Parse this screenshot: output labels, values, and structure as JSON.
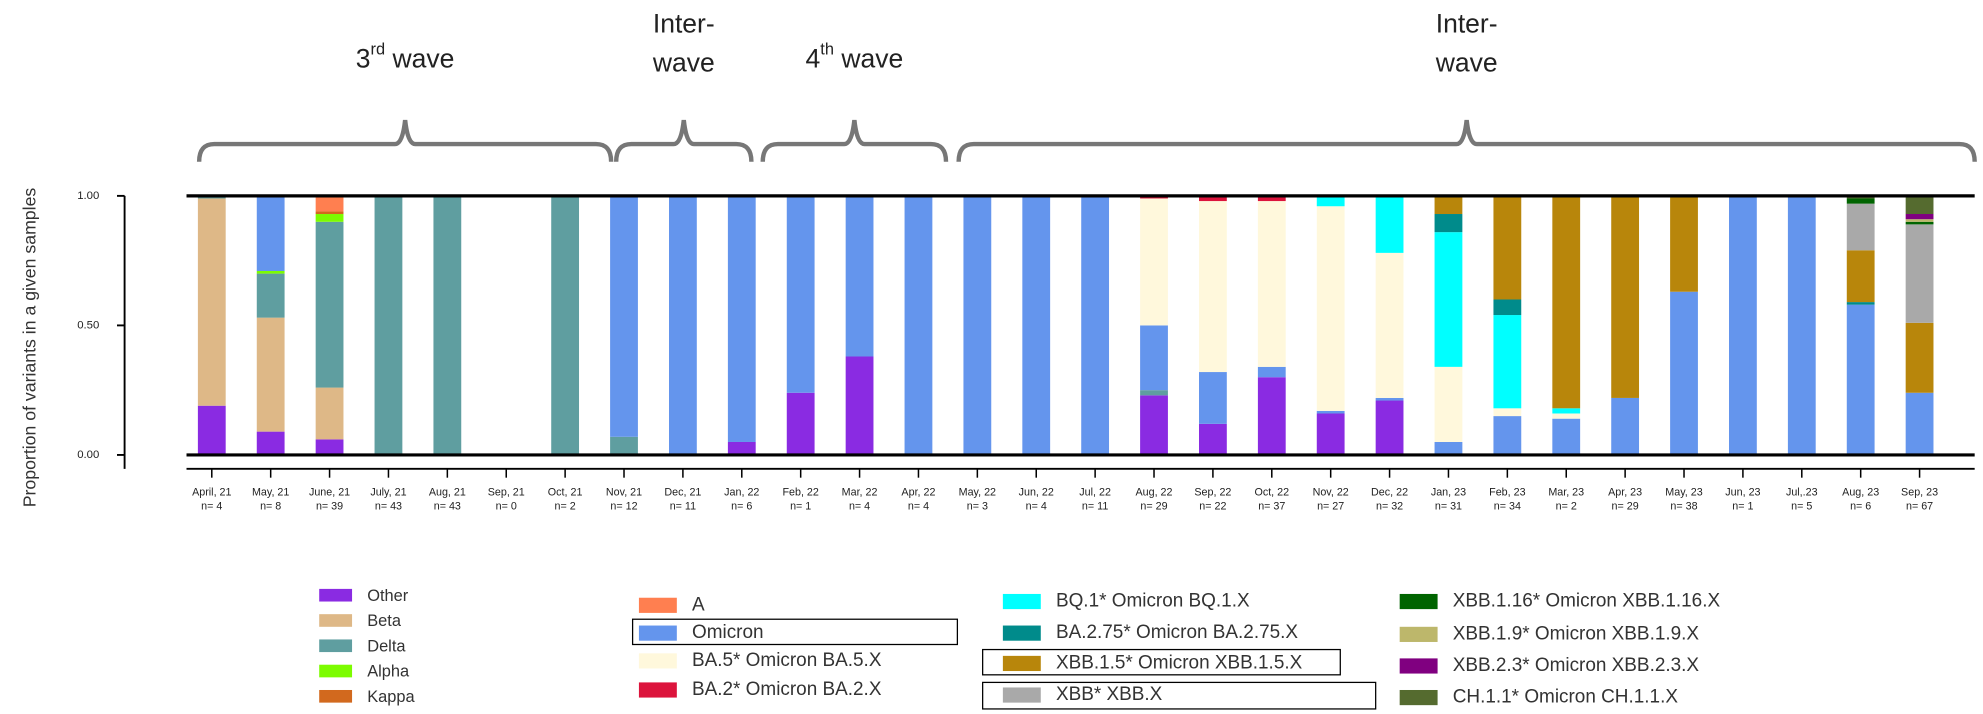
{
  "chart_data": {
    "type": "stacked_bar",
    "y_label": "Proportion of variants in a given samples",
    "ylim": [
      0,
      1
    ],
    "yticks": [
      {
        "value": 0,
        "label": "0.00"
      },
      {
        "value": 0.5,
        "label": "0.50"
      },
      {
        "value": 1,
        "label": "1.00"
      }
    ],
    "categories": [
      "April, 21",
      "May, 21",
      "June, 21",
      "July, 21",
      "Aug, 21",
      "Sep, 21",
      "Oct, 21",
      "Nov, 21",
      "Dec, 21",
      "Jan, 22",
      "Feb, 22",
      "Mar, 22",
      "Apr, 22",
      "May, 22",
      "Jun, 22",
      "Jul, 22",
      "Aug, 22",
      "Sep, 22",
      "Oct, 22",
      "Nov, 22",
      "Dec, 22",
      "Jan, 23",
      "Feb, 23",
      "Mar, 23",
      "Apr, 23",
      "May, 23",
      "Jun, 23",
      "Jul,.23",
      "Aug, 23",
      "Sep, 23"
    ],
    "sample_labels": [
      "n= 4",
      "n= 8",
      "n= 39",
      "n= 43",
      "n= 43",
      "n= 0",
      "n= 2",
      "n= 12",
      "n= 11",
      "n= 6",
      "n= 1",
      "n= 4",
      "n= 4",
      "n= 3",
      "n= 4",
      "n= 11",
      "n= 29",
      "n= 22",
      "n= 37",
      "n= 27",
      "n= 32",
      "n= 31",
      "n= 34",
      "n= 2",
      "n= 29",
      "n= 38",
      "n= 1",
      "n= 5",
      "n= 6",
      "n= 67"
    ],
    "annotations": [
      {
        "base": "3",
        "sup": "rd",
        "rest": " wave"
      },
      {
        "lines": [
          "Inter-",
          "wave"
        ]
      },
      {
        "base": "4",
        "sup": "th",
        "rest": " wave"
      },
      {
        "lines": [
          "Inter-",
          "wave"
        ]
      }
    ],
    "series": [
      {
        "name": "Other",
        "color": "#8a2be2",
        "values": [
          0.19,
          0.09,
          0.06,
          0,
          0,
          0,
          0,
          0,
          0,
          0.05,
          0.24,
          0.38,
          0,
          0,
          0,
          0,
          0.23,
          0.12,
          0.3,
          0.16,
          0.21,
          0,
          0,
          0,
          0,
          0,
          0,
          0,
          0,
          0
        ]
      },
      {
        "name": "Beta",
        "color": "#deb887",
        "values": [
          0.8,
          0.44,
          0.2,
          0,
          0,
          0,
          0,
          0,
          0,
          0,
          0,
          0,
          0,
          0,
          0,
          0,
          0,
          0,
          0,
          0,
          0,
          0,
          0,
          0,
          0,
          0,
          0,
          0,
          0,
          0
        ]
      },
      {
        "name": "Delta",
        "color": "#5f9ea0",
        "values": [
          0.01,
          0.17,
          0.64,
          1,
          1,
          0,
          1,
          0.07,
          0,
          0,
          0,
          0,
          0,
          0,
          0,
          0,
          0.02,
          0,
          0,
          0,
          0,
          0,
          0,
          0,
          0,
          0,
          0,
          0,
          0,
          0
        ]
      },
      {
        "name": "Alpha",
        "color": "#7cfc00",
        "values": [
          0,
          0.01,
          0.03,
          0,
          0,
          0,
          0,
          0,
          0,
          0,
          0,
          0,
          0,
          0,
          0,
          0,
          0,
          0,
          0,
          0,
          0,
          0,
          0,
          0,
          0,
          0,
          0,
          0,
          0,
          0
        ]
      },
      {
        "name": "Kappa",
        "color": "#d2691e",
        "values": [
          0,
          0,
          0.01,
          0,
          0,
          0,
          0,
          0,
          0,
          0,
          0,
          0,
          0,
          0,
          0,
          0,
          0,
          0,
          0,
          0,
          0,
          0,
          0,
          0,
          0,
          0,
          0,
          0,
          0,
          0
        ]
      },
      {
        "name": "A",
        "color": "#ff7f50",
        "values": [
          0,
          0,
          0.06,
          0,
          0,
          0,
          0,
          0,
          0,
          0,
          0,
          0,
          0,
          0,
          0,
          0,
          0,
          0,
          0,
          0,
          0,
          0,
          0,
          0,
          0,
          0,
          0,
          0,
          0,
          0
        ]
      },
      {
        "name": "Omicron",
        "color": "#6495ed",
        "values": [
          0,
          0.29,
          0,
          0,
          0,
          0,
          0,
          0.93,
          1,
          0.95,
          0.76,
          0.62,
          1,
          1,
          1,
          1,
          0.25,
          0.2,
          0.04,
          0.01,
          0.01,
          0.05,
          0.15,
          0.14,
          0.22,
          0.63,
          1,
          1,
          0.58,
          0.24
        ]
      },
      {
        "name": "BA.5* Omicron BA.5.X",
        "color": "#fff8dc",
        "values": [
          0,
          0,
          0,
          0,
          0,
          0,
          0,
          0,
          0,
          0,
          0,
          0,
          0,
          0,
          0,
          0,
          0.49,
          0.66,
          0.64,
          0.79,
          0.56,
          0.29,
          0.03,
          0.02,
          0,
          0,
          0,
          0,
          0,
          0
        ]
      },
      {
        "name": "BA.2* Omicron BA.2.X",
        "color": "#dc143c",
        "values": [
          0,
          0,
          0,
          0,
          0,
          0,
          0,
          0,
          0,
          0,
          0,
          0,
          0,
          0,
          0,
          0,
          0.01,
          0.02,
          0.02,
          0,
          0,
          0,
          0,
          0,
          0,
          0,
          0,
          0,
          0,
          0
        ]
      },
      {
        "name": "BQ.1* Omicron BQ.1.X",
        "color": "#00ffff",
        "values": [
          0,
          0,
          0,
          0,
          0,
          0,
          0,
          0,
          0,
          0,
          0,
          0,
          0,
          0,
          0,
          0,
          0,
          0,
          0,
          0.04,
          0.22,
          0.52,
          0.36,
          0.02,
          0,
          0,
          0,
          0,
          0,
          0
        ]
      },
      {
        "name": "BA.2.75* Omicron BA.2.75.X",
        "color": "#008b8b",
        "values": [
          0,
          0,
          0,
          0,
          0,
          0,
          0,
          0,
          0,
          0,
          0,
          0,
          0,
          0,
          0,
          0,
          0,
          0,
          0,
          0,
          0,
          0.07,
          0.06,
          0,
          0,
          0,
          0,
          0,
          0.01,
          0
        ]
      },
      {
        "name": "XBB.1.5* Omicron XBB.1.5.X",
        "color": "#b8860b",
        "values": [
          0,
          0,
          0,
          0,
          0,
          0,
          0,
          0,
          0,
          0,
          0,
          0,
          0,
          0,
          0,
          0,
          0,
          0,
          0,
          0,
          0,
          0.07,
          0.4,
          0.82,
          0.78,
          0.37,
          0,
          0,
          0.2,
          0.27
        ]
      },
      {
        "name": "XBB* XBB.X",
        "color": "#a9a9a9",
        "values": [
          0,
          0,
          0,
          0,
          0,
          0,
          0,
          0,
          0,
          0,
          0,
          0,
          0,
          0,
          0,
          0,
          0,
          0,
          0,
          0,
          0,
          0,
          0,
          0,
          0,
          0,
          0,
          0,
          0.18,
          0.38
        ]
      },
      {
        "name": "XBB.1.16* Omicron XBB.1.16.X",
        "color": "#006400",
        "values": [
          0,
          0,
          0,
          0,
          0,
          0,
          0,
          0,
          0,
          0,
          0,
          0,
          0,
          0,
          0,
          0,
          0,
          0,
          0,
          0,
          0,
          0,
          0,
          0,
          0,
          0,
          0,
          0,
          0.02,
          0.01
        ]
      },
      {
        "name": "XBB.1.9* Omicron XBB.1.9.X",
        "color": "#bdb76b",
        "values": [
          0,
          0,
          0,
          0,
          0,
          0,
          0,
          0,
          0,
          0,
          0,
          0,
          0,
          0,
          0,
          0,
          0,
          0,
          0,
          0,
          0,
          0,
          0,
          0,
          0,
          0,
          0,
          0,
          0,
          0.01
        ]
      },
      {
        "name": "XBB.2.3* Omicron XBB.2.3.X",
        "color": "#800080",
        "values": [
          0,
          0,
          0,
          0,
          0,
          0,
          0,
          0,
          0,
          0,
          0,
          0,
          0,
          0,
          0,
          0,
          0,
          0,
          0,
          0,
          0,
          0,
          0,
          0,
          0,
          0,
          0,
          0,
          0,
          0.02
        ]
      },
      {
        "name": "CH.1.1* Omicron CH.1.1.X",
        "color": "#556b2f",
        "values": [
          0,
          0,
          0,
          0,
          0,
          0,
          0,
          0,
          0,
          0,
          0,
          0,
          0,
          0,
          0,
          0,
          0,
          0,
          0,
          0,
          0,
          0,
          0,
          0,
          0,
          0,
          0,
          0,
          0.01,
          0.07
        ]
      }
    ]
  }
}
